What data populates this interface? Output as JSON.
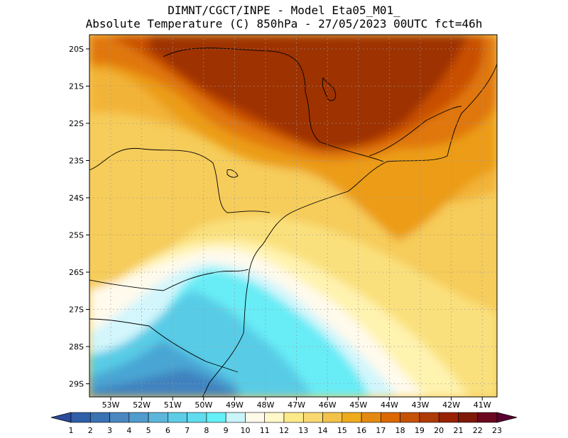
{
  "header": {
    "line1": "DIMNT/CGCT/INPE -  Model Eta05_M01_",
    "line2": "Absolute Temperature (C) 850hPa -  27/05/2023 00UTC fct=46h"
  },
  "axes": {
    "lat_labels": [
      "20S",
      "21S",
      "22S",
      "23S",
      "24S",
      "25S",
      "26S",
      "27S",
      "28S",
      "29S"
    ],
    "lon_labels": [
      "53W",
      "52W",
      "51W",
      "50W",
      "49W",
      "48W",
      "47W",
      "46W",
      "45W",
      "44W",
      "43W",
      "42W",
      "41W"
    ],
    "gridlines": "dotted"
  },
  "colorbar": {
    "labels": [
      "1",
      "2",
      "3",
      "4",
      "5",
      "6",
      "7",
      "8",
      "9",
      "10",
      "11",
      "12",
      "13",
      "14",
      "15",
      "16",
      "17",
      "18",
      "19",
      "20",
      "21",
      "22",
      "23"
    ],
    "colors": [
      "#2b4c9c",
      "#2f5fa8",
      "#3a72b4",
      "#4a87c0",
      "#4f9ccd",
      "#5cb6dc",
      "#5ccde6",
      "#5fdcee",
      "#63f0f6",
      "#c8f4fa",
      "#fff9ea",
      "#fff8c8",
      "#fcea8a",
      "#f8d870",
      "#f2c24a",
      "#eeab1c",
      "#e58a10",
      "#db6800",
      "#c55208",
      "#ae3a06",
      "#982204",
      "#7e1808",
      "#6a0820",
      "#5a0030"
    ]
  },
  "map": {
    "fields": [
      {
        "name": "hot-core",
        "color": "#9e3204"
      },
      {
        "name": "dark-orange",
        "color": "#c94f06"
      },
      {
        "name": "orange",
        "color": "#e0770a"
      },
      {
        "name": "light-orange",
        "color": "#ec9c16"
      },
      {
        "name": "gold",
        "color": "#f2b438"
      },
      {
        "name": "yellow",
        "color": "#f6cc5a"
      },
      {
        "name": "pale-yellow",
        "color": "#fae07c"
      },
      {
        "name": "cream",
        "color": "#fff3b0"
      },
      {
        "name": "ivory",
        "color": "#fffaec"
      },
      {
        "name": "pale-cyan",
        "color": "#d2f6fc"
      },
      {
        "name": "cyan",
        "color": "#68ecf6"
      },
      {
        "name": "teal",
        "color": "#58cce6"
      },
      {
        "name": "blue",
        "color": "#4aa6d4"
      },
      {
        "name": "deep-blue",
        "color": "#3f82bf"
      }
    ],
    "features": [
      "coastline",
      "state-borders"
    ]
  }
}
